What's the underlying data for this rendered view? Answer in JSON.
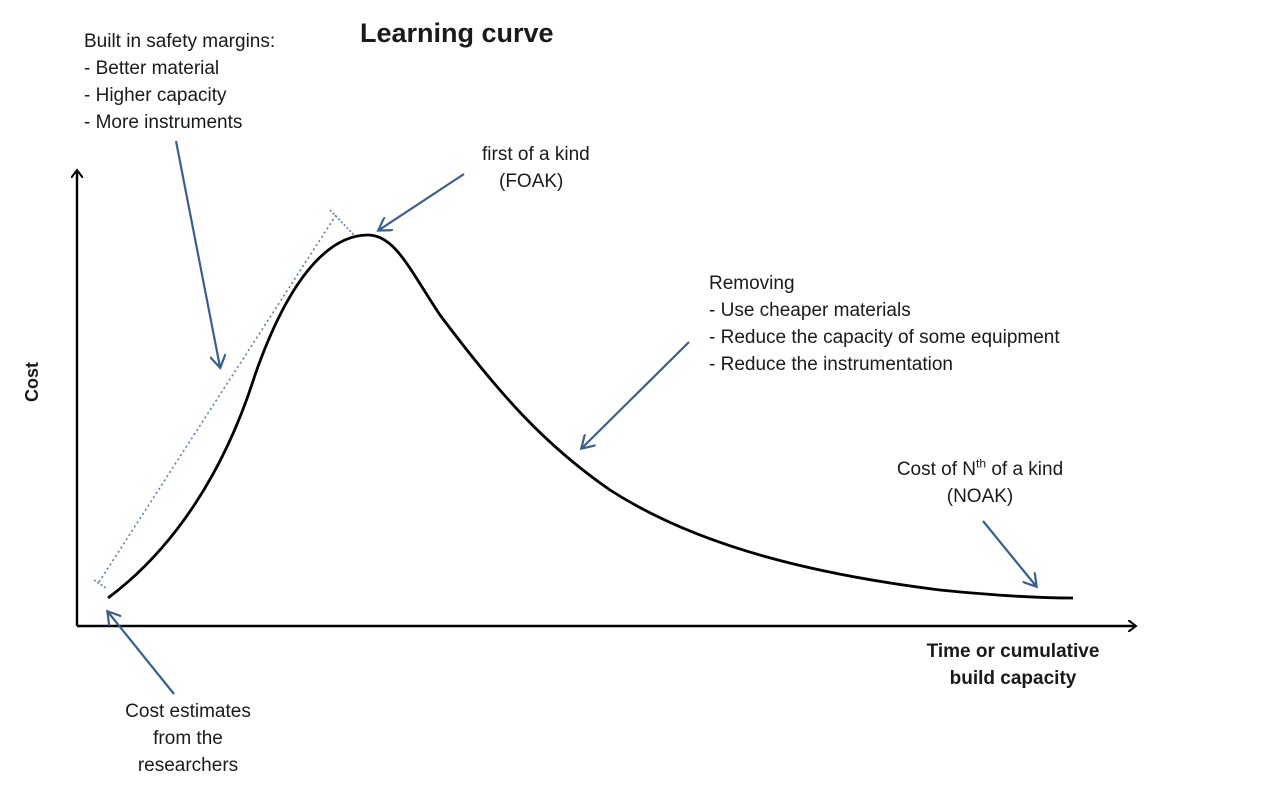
{
  "title": "Learning curve",
  "axes": {
    "y_label": "Cost",
    "x_label_lines": [
      "Time or cumulative",
      "build capacity"
    ]
  },
  "annotations": {
    "safety_margins": {
      "heading": "Built in safety margins:",
      "items": [
        "- Better material",
        "- Higher capacity",
        "- More instruments"
      ]
    },
    "foak": {
      "line1": "first of a kind",
      "line2": "(FOAK)"
    },
    "removing": {
      "heading": "Removing",
      "items": [
        "- Use cheaper materials",
        "- Reduce the capacity of some equipment",
        "- Reduce the instrumentation"
      ]
    },
    "noak": {
      "prefix": "Cost of N",
      "superscript": "th",
      "suffix": " of a kind",
      "line2": "(NOAK)"
    },
    "researchers": {
      "lines": [
        "Cost estimates",
        "from the",
        "researchers"
      ]
    }
  },
  "colors": {
    "curve": "#000000",
    "axis": "#000000",
    "arrow": "#3a5f8f",
    "dotted": "#5a7fa8"
  }
}
